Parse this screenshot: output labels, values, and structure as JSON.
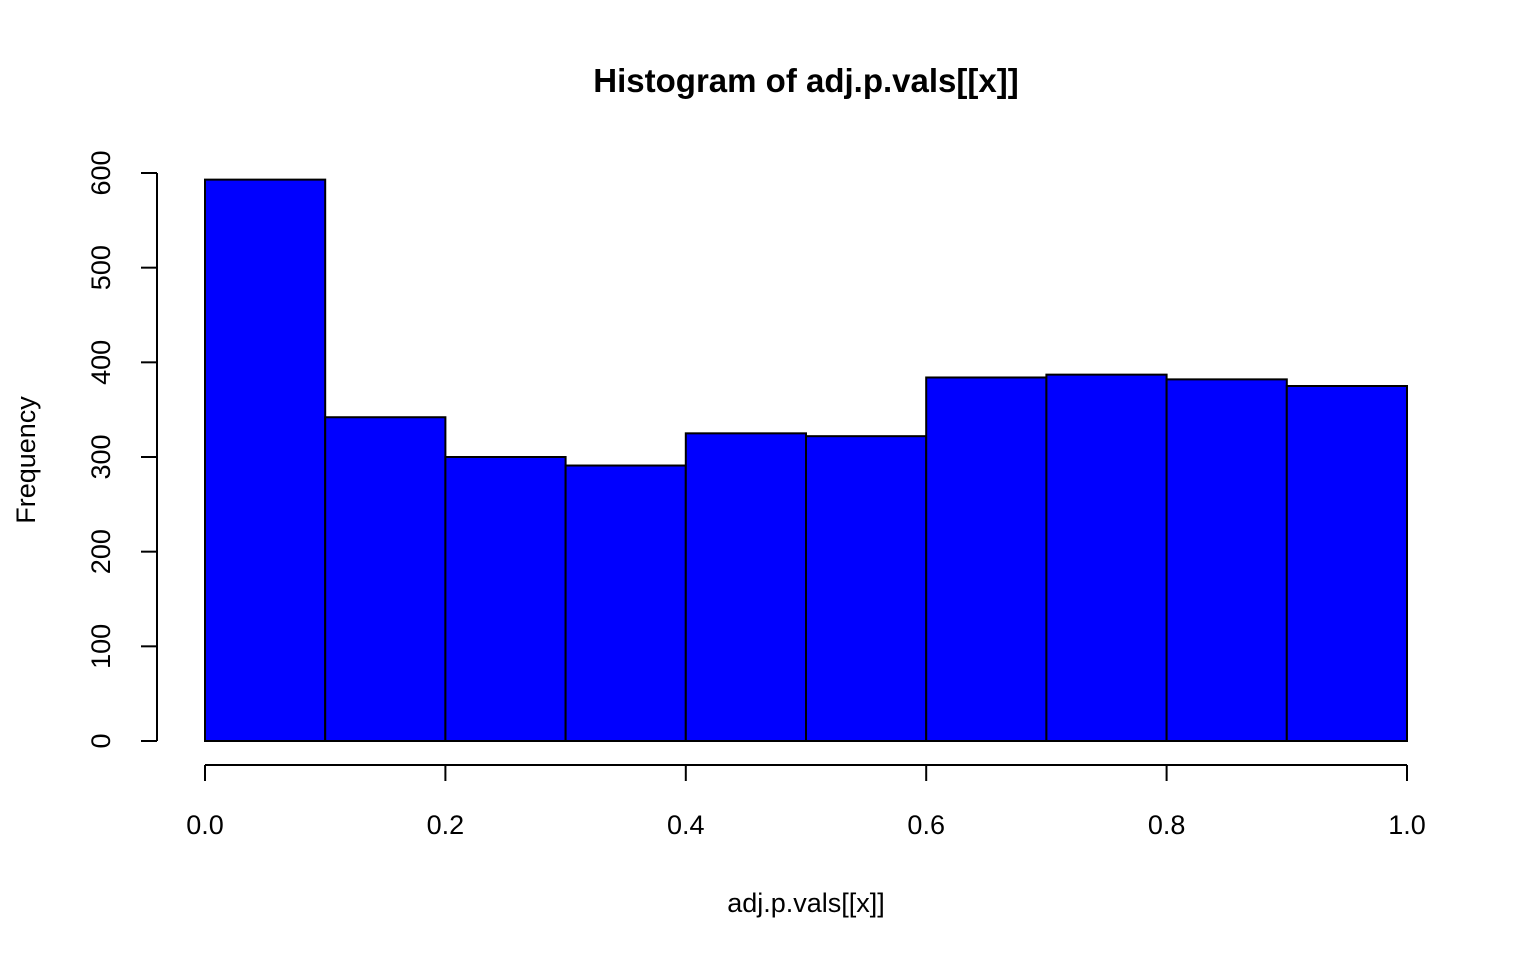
{
  "chart_data": {
    "type": "bar",
    "title": "Histogram of adj.p.vals[[x]]",
    "xlabel": "adj.p.vals[[x]]",
    "ylabel": "Frequency",
    "bin_edges": [
      0.0,
      0.1,
      0.2,
      0.3,
      0.4,
      0.5,
      0.6,
      0.7,
      0.8,
      0.9,
      1.0
    ],
    "values": [
      593,
      342,
      300,
      291,
      325,
      322,
      384,
      387,
      382,
      375
    ],
    "xlim": [
      0.0,
      1.0
    ],
    "ylim": [
      0,
      600
    ],
    "x_ticks": [
      "0.0",
      "0.2",
      "0.4",
      "0.6",
      "0.8",
      "1.0"
    ],
    "y_ticks": [
      "0",
      "100",
      "200",
      "300",
      "400",
      "500",
      "600"
    ],
    "grid": false,
    "bar_color": "#0000ff"
  }
}
